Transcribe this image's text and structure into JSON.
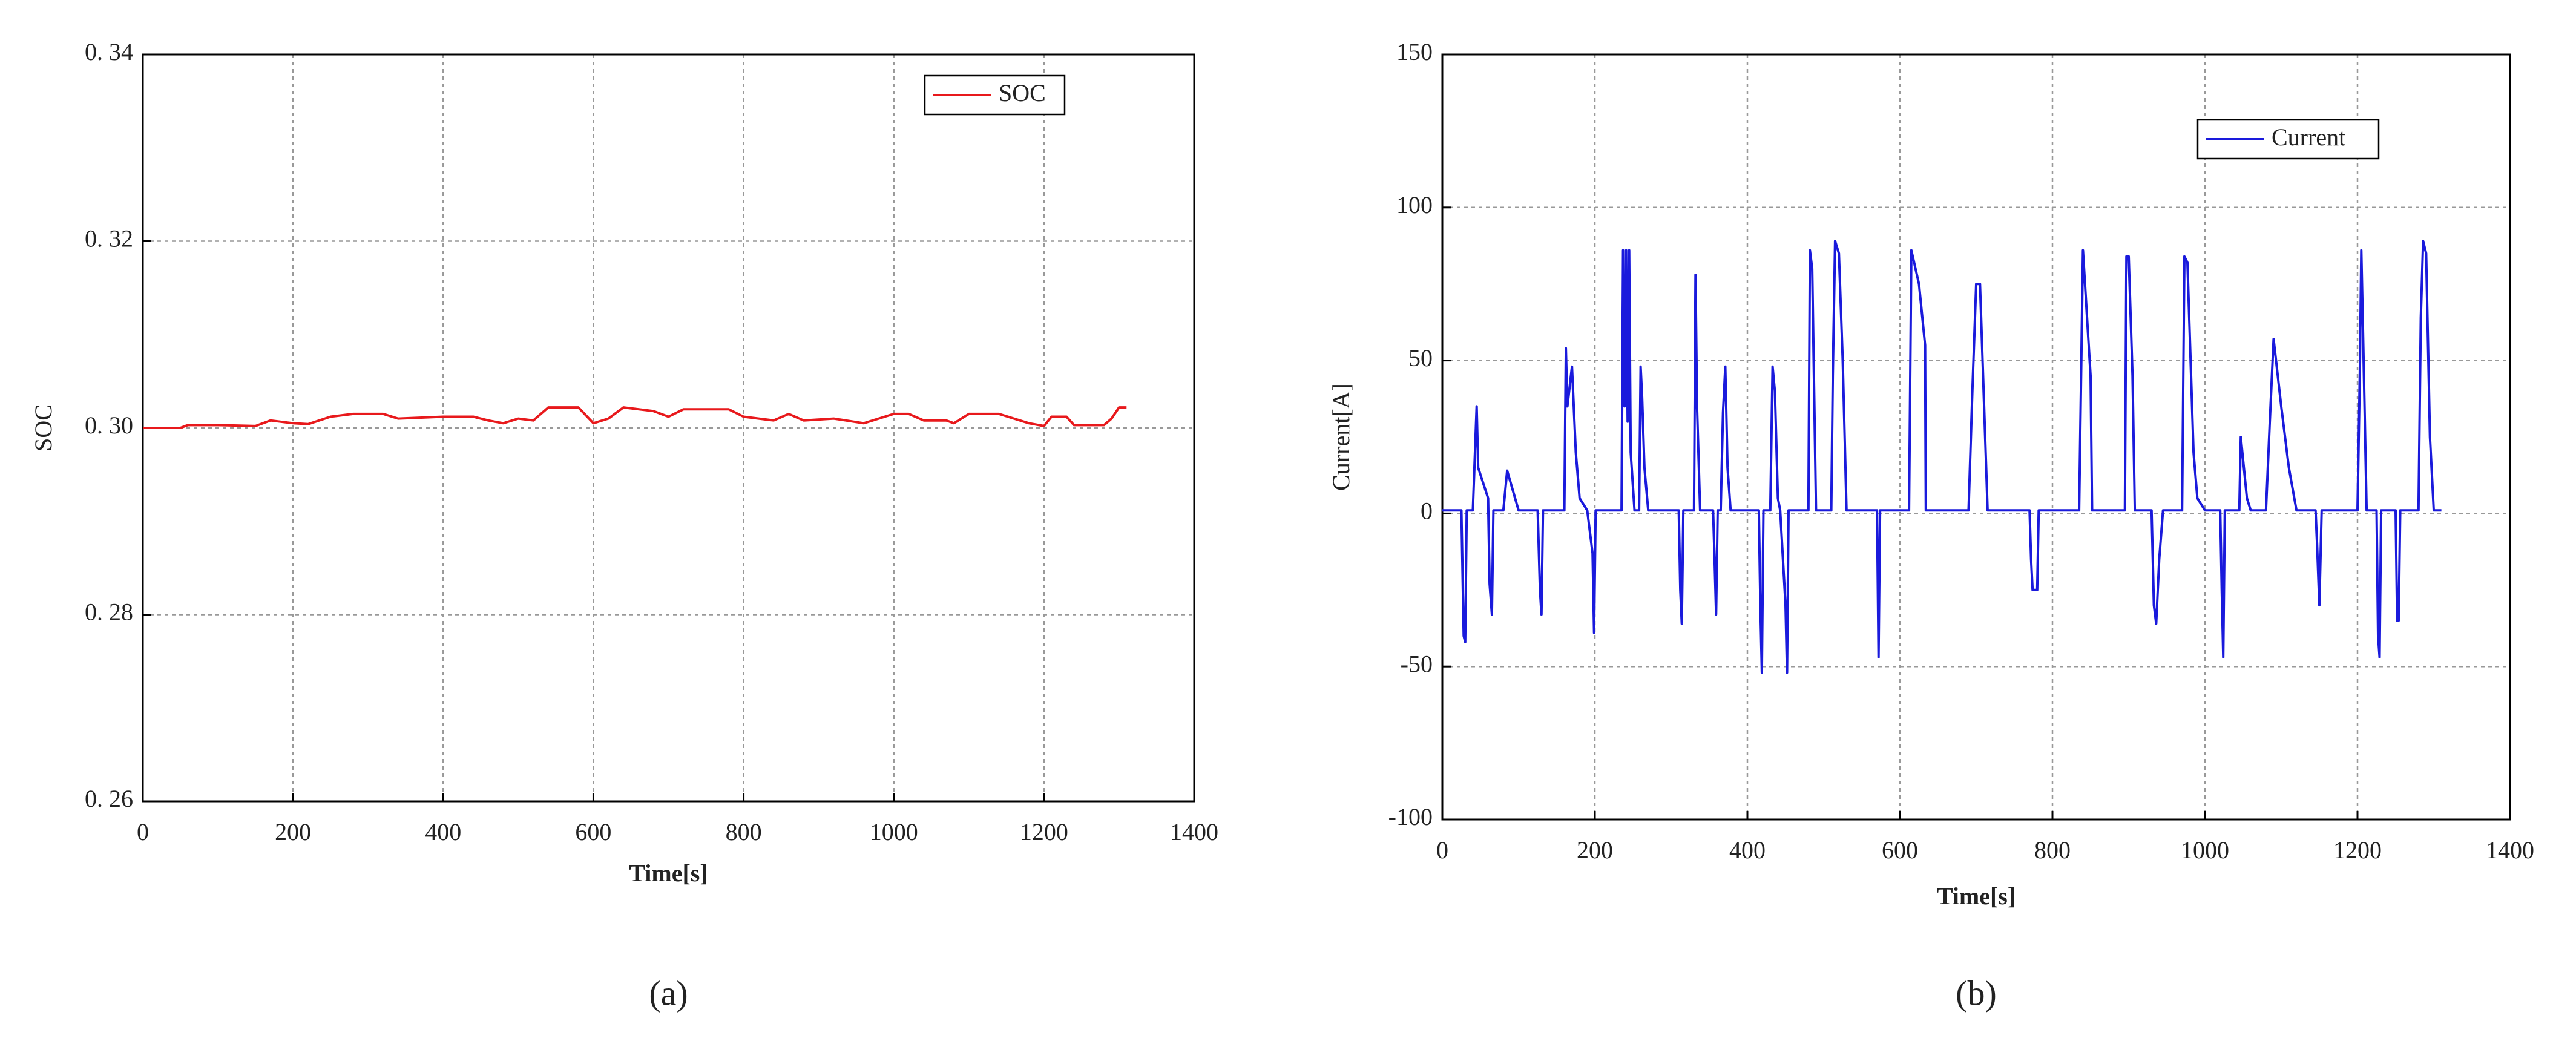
{
  "chart_data": [
    {
      "type": "line",
      "caption": "(a)",
      "xlabel": "Time[s]",
      "ylabel": "SOC",
      "xlim": [
        0,
        1400
      ],
      "xticks": [
        0,
        200,
        400,
        600,
        800,
        1000,
        1200,
        1400
      ],
      "ylim": [
        0.26,
        0.34
      ],
      "yticks": [
        {
          "value": 0.26,
          "label": "0. 26"
        },
        {
          "value": 0.28,
          "label": "0. 28"
        },
        {
          "value": 0.3,
          "label": "0. 30"
        },
        {
          "value": 0.32,
          "label": "0. 32"
        },
        {
          "value": 0.34,
          "label": "0. 34"
        }
      ],
      "grid": true,
      "legend": "upper right",
      "x": [
        0,
        50,
        60,
        100,
        150,
        170,
        200,
        220,
        250,
        280,
        320,
        340,
        400,
        440,
        460,
        480,
        500,
        520,
        540,
        580,
        600,
        620,
        640,
        680,
        700,
        720,
        780,
        800,
        840,
        860,
        880,
        920,
        960,
        1000,
        1020,
        1040,
        1070,
        1080,
        1100,
        1140,
        1180,
        1200,
        1210,
        1230,
        1240,
        1280,
        1290,
        1300,
        1310
      ],
      "series": [
        {
          "name": "SOC",
          "color": "#e8191c",
          "values": [
            0.3,
            0.3,
            0.3003,
            0.3003,
            0.3002,
            0.3008,
            0.3005,
            0.3004,
            0.3012,
            0.3015,
            0.3015,
            0.301,
            0.3012,
            0.3012,
            0.3008,
            0.3005,
            0.301,
            0.3008,
            0.3022,
            0.3022,
            0.3005,
            0.301,
            0.3022,
            0.3018,
            0.3012,
            0.302,
            0.302,
            0.3012,
            0.3008,
            0.3015,
            0.3008,
            0.301,
            0.3005,
            0.3015,
            0.3015,
            0.3008,
            0.3008,
            0.3005,
            0.3015,
            0.3015,
            0.3005,
            0.3002,
            0.3012,
            0.3012,
            0.3003,
            0.3003,
            0.301,
            0.3022,
            0.3022
          ]
        }
      ]
    },
    {
      "type": "line",
      "caption": "(b)",
      "xlabel": "Time[s]",
      "ylabel": "Current[A]",
      "xlim": [
        0,
        1400
      ],
      "xticks": [
        0,
        200,
        400,
        600,
        800,
        1000,
        1200,
        1400
      ],
      "ylim": [
        -100,
        150
      ],
      "yticks": [
        -100,
        -50,
        0,
        50,
        100,
        150
      ],
      "grid": true,
      "legend": "upper right",
      "x": [
        0,
        25,
        28,
        30,
        32,
        40,
        45,
        47,
        60,
        62,
        65,
        67,
        80,
        85,
        100,
        125,
        128,
        130,
        132,
        160,
        162,
        164,
        170,
        175,
        180,
        190,
        197,
        199,
        201,
        235,
        237,
        239,
        241,
        243,
        245,
        247,
        252,
        258,
        260,
        262,
        265,
        270,
        310,
        312,
        314,
        316,
        330,
        332,
        334,
        338,
        355,
        357,
        359,
        361,
        365,
        368,
        371,
        374,
        378,
        415,
        417,
        419,
        421,
        430,
        433,
        436,
        440,
        443,
        450,
        452,
        454,
        480,
        482,
        485,
        490,
        510,
        512,
        515,
        520,
        525,
        530,
        570,
        572,
        574,
        612,
        615,
        625,
        633,
        634,
        690,
        695,
        700,
        705,
        715,
        770,
        772,
        774,
        780,
        782,
        835,
        840,
        850,
        852,
        895,
        897,
        900,
        905,
        908,
        930,
        933,
        936,
        940,
        945,
        970,
        973,
        977,
        985,
        990,
        1000,
        1020,
        1022,
        1024,
        1026,
        1045,
        1047,
        1055,
        1060,
        1080,
        1085,
        1090,
        1100,
        1110,
        1120,
        1145,
        1147,
        1150,
        1153,
        1200,
        1203,
        1205,
        1208,
        1212,
        1225,
        1227,
        1229,
        1231,
        1250,
        1252,
        1254,
        1256,
        1280,
        1283,
        1286,
        1290,
        1295,
        1300,
        1310
      ],
      "series": [
        {
          "name": "Current",
          "color": "#1a1adc",
          "values": [
            1,
            1,
            -40,
            -42,
            1,
            1,
            35,
            15,
            5,
            -23,
            -33,
            1,
            1,
            14,
            1,
            1,
            -25,
            -33,
            1,
            1,
            54,
            35,
            48,
            20,
            5,
            1,
            -13,
            -39,
            1,
            1,
            86,
            35,
            86,
            30,
            86,
            20,
            1,
            1,
            48,
            38,
            15,
            1,
            1,
            -25,
            -36,
            1,
            1,
            78,
            35,
            1,
            1,
            -15,
            -33,
            1,
            1,
            33,
            48,
            15,
            1,
            1,
            -30,
            -52,
            1,
            1,
            48,
            40,
            5,
            1,
            -30,
            -52,
            1,
            1,
            86,
            80,
            1,
            1,
            45,
            89,
            85,
            50,
            1,
            1,
            -47,
            1,
            1,
            86,
            75,
            55,
            1,
            1,
            40,
            75,
            75,
            1,
            1,
            -15,
            -25,
            -25,
            1,
            1,
            86,
            45,
            1,
            1,
            84,
            84,
            45,
            1,
            1,
            -30,
            -36,
            -15,
            1,
            1,
            84,
            82,
            20,
            5,
            1,
            1,
            -25,
            -47,
            1,
            1,
            25,
            5,
            1,
            1,
            30,
            57,
            35,
            15,
            1,
            1,
            -10,
            -30,
            1,
            1,
            45,
            86,
            50,
            1,
            1,
            -40,
            -47,
            1,
            1,
            -35,
            -35,
            1,
            1,
            64,
            89,
            85,
            25,
            1,
            1
          ]
        }
      ]
    }
  ]
}
